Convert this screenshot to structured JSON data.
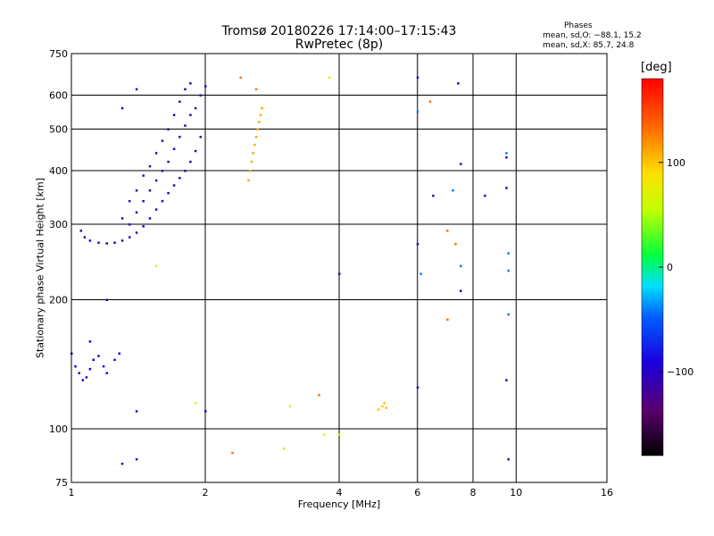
{
  "chart_data": {
    "type": "scatter",
    "title": "Tromsø 20180226 17:14:00–17:15:43",
    "subtitle": "RwPretec (8p)",
    "xlabel": "Frequency [MHz]",
    "ylabel": "Stationary phase Virtual Height [km]",
    "x_scale": "log",
    "y_scale": "log",
    "xlim": [
      1,
      16
    ],
    "ylim": [
      75,
      750
    ],
    "x_ticks": [
      "1",
      "2",
      "4",
      "6",
      "8",
      "10",
      "16"
    ],
    "y_ticks": [
      "75",
      "100",
      "200",
      "300",
      "400",
      "500",
      "600",
      "750"
    ],
    "grid": true,
    "stats": {
      "heading": "Phases",
      "o_line": "mean, sd,O: −88.1, 15.2",
      "x_line": "mean, sd,X:  85.7, 24.8"
    },
    "colorbar": {
      "unit": "[deg]",
      "range": [
        -180,
        180
      ],
      "ticks": [
        "100",
        "0",
        "−100"
      ],
      "tick_values": [
        100,
        0,
        -100
      ]
    },
    "traces": [
      {
        "name": "",
        "phase": -105,
        "points": [
          [
            1.05,
            290
          ],
          [
            1.07,
            280
          ],
          [
            1.1,
            275
          ],
          [
            1.15,
            272
          ],
          [
            1.2,
            271
          ],
          [
            1.25,
            272
          ],
          [
            1.3,
            275
          ],
          [
            1.35,
            280
          ],
          [
            1.4,
            287
          ],
          [
            1.45,
            297
          ],
          [
            1.5,
            310
          ],
          [
            1.55,
            325
          ],
          [
            1.6,
            340
          ],
          [
            1.65,
            355
          ],
          [
            1.7,
            370
          ],
          [
            1.75,
            385
          ],
          [
            1.8,
            400
          ],
          [
            1.85,
            420
          ],
          [
            1.9,
            445
          ],
          [
            1.95,
            480
          ]
        ]
      },
      {
        "name": "",
        "phase": -110,
        "points": [
          [
            1.35,
            300
          ],
          [
            1.4,
            320
          ],
          [
            1.45,
            340
          ],
          [
            1.5,
            360
          ],
          [
            1.55,
            380
          ],
          [
            1.6,
            400
          ],
          [
            1.65,
            420
          ],
          [
            1.7,
            450
          ],
          [
            1.75,
            480
          ],
          [
            1.8,
            510
          ],
          [
            1.85,
            540
          ],
          [
            1.9,
            560
          ],
          [
            1.95,
            600
          ],
          [
            2.0,
            630
          ]
        ]
      },
      {
        "name": "",
        "phase": -112,
        "points": [
          [
            1.3,
            310
          ],
          [
            1.35,
            340
          ],
          [
            1.4,
            360
          ],
          [
            1.45,
            390
          ],
          [
            1.5,
            410
          ],
          [
            1.55,
            440
          ],
          [
            1.6,
            470
          ],
          [
            1.65,
            500
          ],
          [
            1.7,
            540
          ],
          [
            1.75,
            580
          ],
          [
            1.8,
            620
          ],
          [
            1.85,
            640
          ]
        ]
      },
      {
        "name": "",
        "phase": -95,
        "points": [
          [
            1.0,
            150
          ],
          [
            1.02,
            140
          ],
          [
            1.04,
            135
          ],
          [
            1.06,
            130
          ],
          [
            1.08,
            132
          ],
          [
            1.1,
            138
          ],
          [
            1.12,
            145
          ],
          [
            1.15,
            148
          ],
          [
            1.18,
            140
          ],
          [
            1.2,
            135
          ],
          [
            1.25,
            145
          ],
          [
            1.28,
            150
          ]
        ]
      },
      {
        "name": "",
        "phase": 110,
        "points": [
          [
            2.5,
            380
          ],
          [
            2.52,
            400
          ],
          [
            2.54,
            420
          ],
          [
            2.56,
            440
          ],
          [
            2.58,
            460
          ],
          [
            2.6,
            480
          ],
          [
            2.62,
            500
          ],
          [
            2.64,
            520
          ],
          [
            2.66,
            540
          ],
          [
            2.68,
            560
          ]
        ]
      },
      {
        "name": "",
        "phase": 100,
        "points": [
          [
            5.0,
            113
          ],
          [
            5.05,
            115
          ],
          [
            5.1,
            112
          ],
          [
            4.9,
            111
          ]
        ]
      },
      {
        "name": "",
        "phase": -110,
        "points": [
          [
            6.0,
            660
          ],
          [
            6.0,
            270
          ],
          [
            6.0,
            125
          ],
          [
            4.0,
            230
          ],
          [
            6.5,
            350
          ],
          [
            8.5,
            350
          ],
          [
            9.5,
            365
          ],
          [
            9.6,
            85
          ],
          [
            9.5,
            130
          ],
          [
            7.5,
            210
          ],
          [
            7.5,
            415
          ],
          [
            7.4,
            640
          ],
          [
            9.5,
            430
          ]
        ]
      },
      {
        "name": "",
        "phase": -40,
        "points": [
          [
            9.6,
            185
          ],
          [
            9.6,
            257
          ],
          [
            9.6,
            234
          ],
          [
            7.2,
            360
          ],
          [
            7.5,
            240
          ],
          [
            6.1,
            230
          ],
          [
            9.5,
            440
          ],
          [
            6.0,
            550
          ]
        ]
      },
      {
        "name": "",
        "phase": 130,
        "points": [
          [
            2.4,
            660
          ],
          [
            2.6,
            620
          ],
          [
            7.0,
            290
          ],
          [
            7.3,
            270
          ],
          [
            7.0,
            180
          ],
          [
            6.4,
            580
          ],
          [
            3.6,
            120
          ],
          [
            2.3,
            88
          ]
        ]
      },
      {
        "name": "",
        "phase": 80,
        "points": [
          [
            3.8,
            660
          ],
          [
            1.9,
            115
          ],
          [
            3.0,
            90
          ],
          [
            3.1,
            113
          ],
          [
            1.55,
            240
          ],
          [
            4.0,
            97
          ],
          [
            3.7,
            97
          ]
        ]
      },
      {
        "name": "",
        "phase": -100,
        "points": [
          [
            1.3,
            560
          ],
          [
            1.4,
            620
          ],
          [
            1.2,
            200
          ],
          [
            1.1,
            160
          ],
          [
            1.4,
            110
          ],
          [
            2.0,
            110
          ],
          [
            1.3,
            83
          ],
          [
            1.4,
            85
          ]
        ]
      }
    ]
  }
}
